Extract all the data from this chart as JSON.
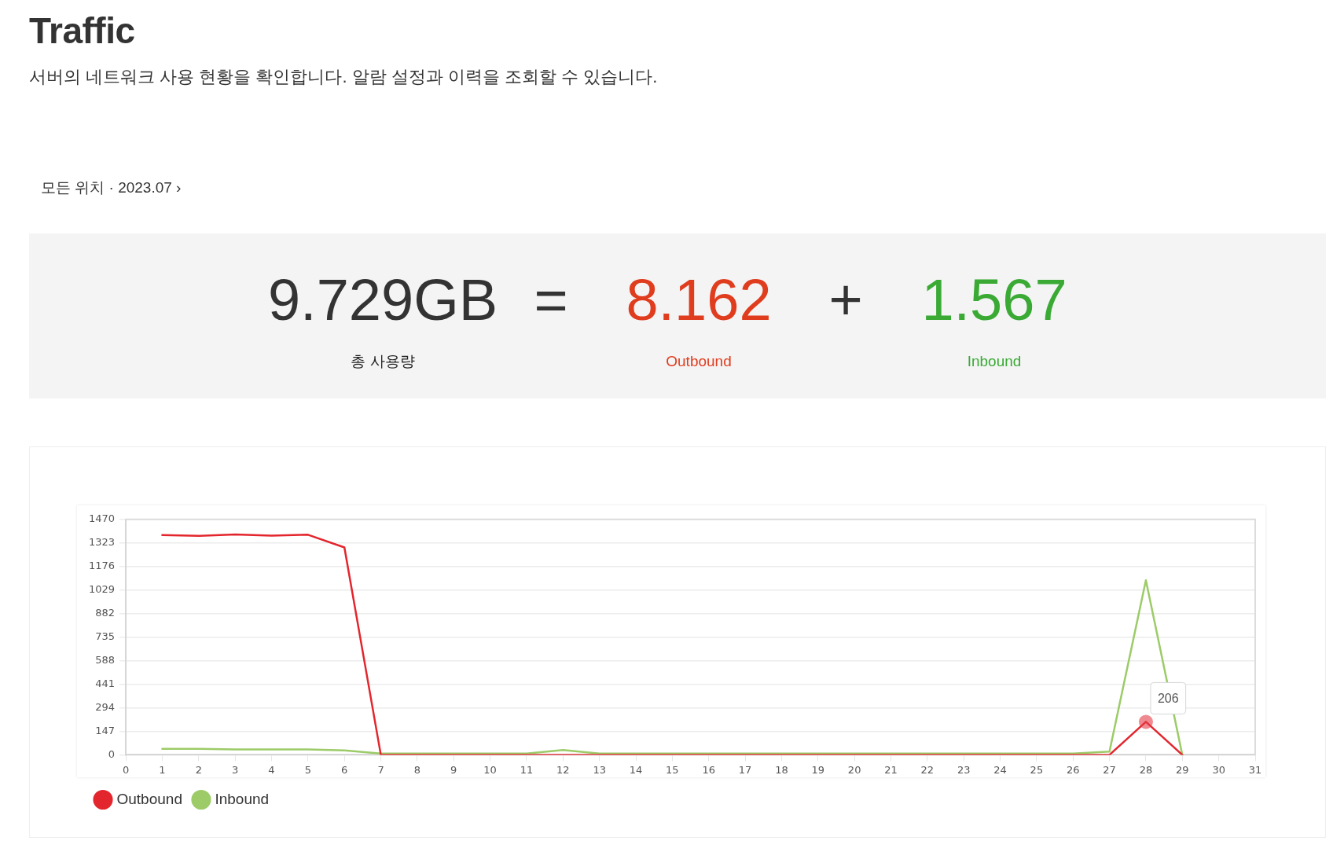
{
  "chart_data": {
    "type": "line",
    "title": "Traffic",
    "subtitle": "서버의 네트워크 사용 현황을 확인합니다. 알람 설정과 이력을 조회할 수 있습니다.",
    "annotations": [
      "모든 위치 · 2023.07 ›",
      "9.729GB",
      "=",
      "8.162",
      "+",
      "1.567",
      "총 사용량",
      "Outbound",
      "Inbound",
      {
        "text": "206",
        "x": 28,
        "y": 206
      }
    ],
    "x": [
      1,
      2,
      3,
      4,
      5,
      6,
      7,
      8,
      9,
      10,
      11,
      12,
      13,
      14,
      15,
      16,
      17,
      18,
      19,
      20,
      21,
      22,
      23,
      24,
      25,
      26,
      27,
      28,
      29
    ],
    "series": [
      {
        "name": "Outbound",
        "color": "#e3262d",
        "values": [
          1372,
          1367,
          1376,
          1369,
          1374,
          1295,
          0,
          0,
          0,
          0,
          0,
          0,
          0,
          0,
          0,
          0,
          0,
          0,
          0,
          0,
          0,
          0,
          0,
          0,
          0,
          0,
          0,
          206,
          0
        ]
      },
      {
        "name": "Inbound",
        "color": "#9ccb68",
        "values": [
          37,
          37,
          34,
          34,
          34,
          28,
          8,
          8,
          8,
          8,
          8,
          30,
          8,
          8,
          8,
          8,
          8,
          8,
          8,
          8,
          8,
          8,
          8,
          8,
          8,
          8,
          20,
          1090,
          0
        ]
      }
    ],
    "xlim": [
      0,
      31
    ],
    "xticks": [
      0,
      1,
      2,
      3,
      4,
      5,
      6,
      7,
      8,
      9,
      10,
      11,
      12,
      13,
      14,
      15,
      16,
      17,
      18,
      19,
      20,
      21,
      22,
      23,
      24,
      25,
      26,
      27,
      28,
      29,
      30,
      31
    ],
    "ylim": [
      0,
      1470
    ],
    "yticks": [
      0,
      147,
      294,
      441,
      588,
      735,
      882,
      1029,
      1176,
      1323,
      1470
    ],
    "grid": "y",
    "legend": "bottom left",
    "marker": "none",
    "line_style": "solid"
  }
}
